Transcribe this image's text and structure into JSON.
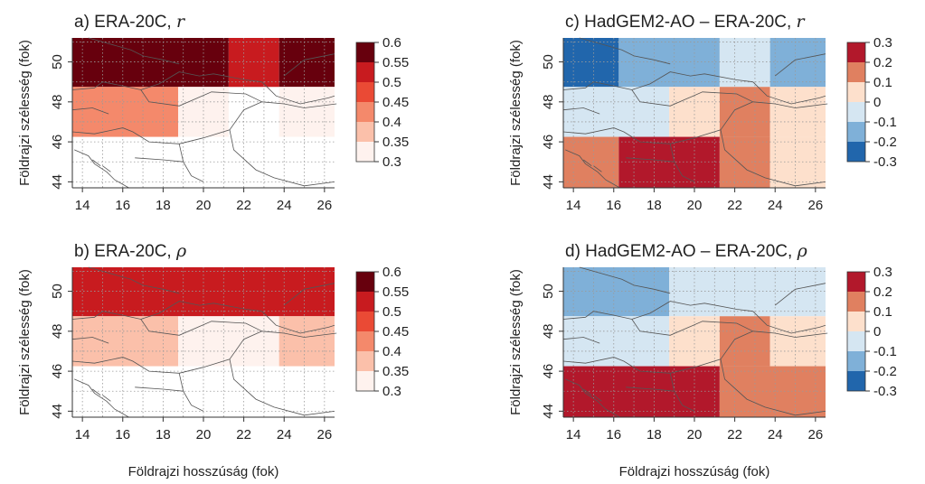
{
  "figure": {
    "xlabel": "Földrajzi hosszúság (fok)",
    "ylabel": "Földrajzi szélesség (fok)",
    "x_ticks": [
      "14",
      "16",
      "18",
      "20",
      "22",
      "24",
      "26"
    ],
    "y_ticks": [
      "44",
      "46",
      "48",
      "50"
    ]
  },
  "legends": {
    "corr": {
      "labels": [
        "0.6",
        "0.55",
        "0.5",
        "0.45",
        "0.4",
        "0.35",
        "0.3"
      ],
      "colors": [
        "#67000d",
        "#c81b1f",
        "#ea4a35",
        "#f4896b",
        "#fbc0aa",
        "#fef2ee"
      ]
    },
    "diff": {
      "labels": [
        "0.3",
        "0.2",
        "0.1",
        "0",
        "-0.1",
        "-0.2",
        "-0.3"
      ],
      "colors": [
        "#b2182b",
        "#e08060",
        "#fde0cc",
        "#d5e6f2",
        "#7fb0d8",
        "#2166ac"
      ]
    }
  },
  "chart_data": [
    {
      "type": "heatmap",
      "title_prefix": "a) ERA-20C, ",
      "title_symbol": "r",
      "xlim": [
        13.5,
        26.5
      ],
      "ylim": [
        43.7,
        51.2
      ],
      "cells": [
        {
          "x0": 13.5,
          "x1": 21.25,
          "y0": 48.75,
          "y1": 51.25,
          "v": "0.55-0.6"
        },
        {
          "x0": 21.25,
          "x1": 23.75,
          "y0": 48.75,
          "y1": 51.25,
          "v": "0.5-0.55"
        },
        {
          "x0": 23.75,
          "x1": 26.5,
          "y0": 48.75,
          "y1": 51.25,
          "v": "0.55-0.6"
        },
        {
          "x0": 13.5,
          "x1": 18.75,
          "y0": 46.25,
          "y1": 48.75,
          "v": "0.4-0.45"
        },
        {
          "x0": 18.75,
          "x1": 21.25,
          "y0": 46.25,
          "y1": 48.75,
          "v": "0.3-0.35"
        },
        {
          "x0": 23.75,
          "x1": 26.5,
          "y0": 46.25,
          "y1": 48.75,
          "v": "0.3-0.35"
        }
      ]
    },
    {
      "type": "heatmap",
      "title_prefix": "b) ERA-20C, ",
      "title_symbol": "ρ",
      "xlim": [
        13.5,
        26.5
      ],
      "ylim": [
        43.7,
        51.2
      ],
      "cells": [
        {
          "x0": 13.5,
          "x1": 26.5,
          "y0": 48.75,
          "y1": 51.25,
          "v": "0.5-0.55"
        },
        {
          "x0": 13.5,
          "x1": 18.75,
          "y0": 46.25,
          "y1": 48.75,
          "v": "0.35-0.4"
        },
        {
          "x0": 18.75,
          "x1": 23.75,
          "y0": 46.25,
          "y1": 48.75,
          "v": "0.3-0.35"
        },
        {
          "x0": 23.75,
          "x1": 26.5,
          "y0": 46.25,
          "y1": 48.75,
          "v": "0.35-0.4"
        }
      ]
    },
    {
      "type": "heatmap",
      "title_prefix": "c) HadGEM2-AO – ERA-20C, ",
      "title_symbol": "r",
      "xlim": [
        13.5,
        26.5
      ],
      "ylim": [
        43.7,
        51.2
      ],
      "cells": [
        {
          "x0": 13.5,
          "x1": 16.25,
          "y0": 48.75,
          "y1": 51.25,
          "v": "-0.3–-0.2"
        },
        {
          "x0": 16.25,
          "x1": 21.25,
          "y0": 48.75,
          "y1": 51.25,
          "v": "-0.2–-0.1"
        },
        {
          "x0": 21.25,
          "x1": 23.75,
          "y0": 48.75,
          "y1": 51.25,
          "v": "-0.1–0"
        },
        {
          "x0": 23.75,
          "x1": 26.5,
          "y0": 48.75,
          "y1": 51.25,
          "v": "-0.2–-0.1"
        },
        {
          "x0": 13.5,
          "x1": 18.75,
          "y0": 46.25,
          "y1": 48.75,
          "v": "-0.1–0"
        },
        {
          "x0": 18.75,
          "x1": 21.25,
          "y0": 46.25,
          "y1": 48.75,
          "v": "0–0.1"
        },
        {
          "x0": 21.25,
          "x1": 23.75,
          "y0": 46.25,
          "y1": 48.75,
          "v": "0.1–0.2"
        },
        {
          "x0": 23.75,
          "x1": 26.5,
          "y0": 46.25,
          "y1": 48.75,
          "v": "0–0.1"
        },
        {
          "x0": 13.5,
          "x1": 16.25,
          "y0": 43.7,
          "y1": 46.25,
          "v": "0.1–0.2"
        },
        {
          "x0": 16.25,
          "x1": 21.25,
          "y0": 43.7,
          "y1": 46.25,
          "v": "0.2–0.3"
        },
        {
          "x0": 21.25,
          "x1": 23.75,
          "y0": 43.7,
          "y1": 46.25,
          "v": "0.1–0.2"
        },
        {
          "x0": 23.75,
          "x1": 26.5,
          "y0": 43.7,
          "y1": 46.25,
          "v": "0–0.1"
        }
      ]
    },
    {
      "type": "heatmap",
      "title_prefix": "d) HadGEM2-AO – ERA-20C, ",
      "title_symbol": "ρ",
      "xlim": [
        13.5,
        26.5
      ],
      "ylim": [
        43.7,
        51.2
      ],
      "cells": [
        {
          "x0": 13.5,
          "x1": 18.75,
          "y0": 48.75,
          "y1": 51.25,
          "v": "-0.2–-0.1"
        },
        {
          "x0": 18.75,
          "x1": 26.5,
          "y0": 48.75,
          "y1": 51.25,
          "v": "-0.1–0"
        },
        {
          "x0": 13.5,
          "x1": 18.75,
          "y0": 46.25,
          "y1": 48.75,
          "v": "-0.1–0"
        },
        {
          "x0": 18.75,
          "x1": 21.25,
          "y0": 46.25,
          "y1": 48.75,
          "v": "0–0.1"
        },
        {
          "x0": 21.25,
          "x1": 23.75,
          "y0": 46.25,
          "y1": 48.75,
          "v": "0.1–0.2"
        },
        {
          "x0": 23.75,
          "x1": 26.5,
          "y0": 46.25,
          "y1": 48.75,
          "v": "0–0.1"
        },
        {
          "x0": 13.5,
          "x1": 21.25,
          "y0": 43.7,
          "y1": 46.25,
          "v": "0.2–0.3"
        },
        {
          "x0": 21.25,
          "x1": 26.5,
          "y0": 43.7,
          "y1": 46.25,
          "v": "0.1–0.2"
        }
      ]
    }
  ]
}
